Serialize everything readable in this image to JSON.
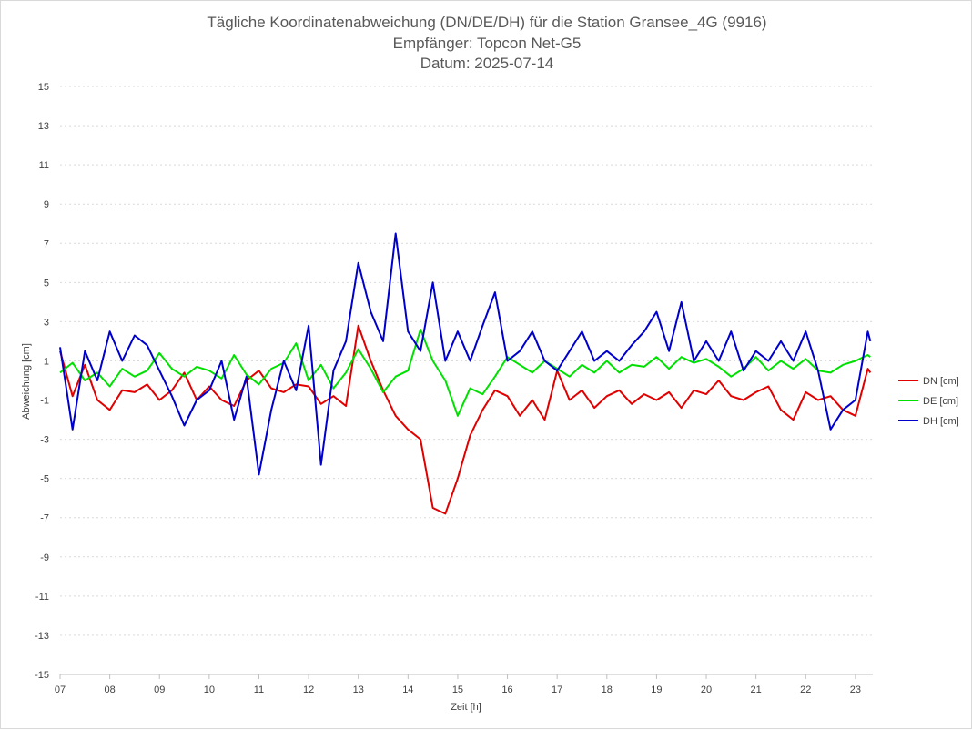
{
  "chart_data": {
    "type": "line",
    "title_lines": [
      "Tägliche Koordinatenabweichung (DN/DE/DH) für die Station Gransee_4G (9916)",
      "Empfänger: Topcon Net-G5",
      "Datum: 2025-07-14"
    ],
    "xlabel": "Zeit [h]",
    "ylabel": "Abweichung [cm]",
    "xlim": [
      7,
      23.35
    ],
    "ylim": [
      -15,
      15
    ],
    "x_ticks": [
      "07",
      "08",
      "09",
      "10",
      "11",
      "12",
      "13",
      "14",
      "15",
      "16",
      "17",
      "18",
      "19",
      "20",
      "21",
      "22",
      "23"
    ],
    "y_ticks": [
      "15",
      "13",
      "11",
      "9",
      "7",
      "5",
      "3",
      "1",
      "-1",
      "-3",
      "-5",
      "-7",
      "-9",
      "-11",
      "-13",
      "-15"
    ],
    "grid": "horizontal dashed",
    "legend_position": "right",
    "x": [
      7.0,
      7.25,
      7.5,
      7.75,
      8.0,
      8.25,
      8.5,
      8.75,
      9.0,
      9.25,
      9.5,
      9.75,
      10.0,
      10.25,
      10.5,
      10.75,
      11.0,
      11.25,
      11.5,
      11.75,
      12.0,
      12.25,
      12.5,
      12.75,
      13.0,
      13.25,
      13.5,
      13.75,
      14.0,
      14.25,
      14.5,
      14.75,
      15.0,
      15.25,
      15.5,
      15.75,
      16.0,
      16.25,
      16.5,
      16.75,
      17.0,
      17.25,
      17.5,
      17.75,
      18.0,
      18.25,
      18.5,
      18.75,
      19.0,
      19.25,
      19.5,
      19.75,
      20.0,
      20.25,
      20.5,
      20.75,
      21.0,
      21.25,
      21.5,
      21.75,
      22.0,
      22.25,
      22.5,
      22.75,
      23.0,
      23.25,
      23.3
    ],
    "series": [
      {
        "name": "DN [cm]",
        "color": "#e00000",
        "values": [
          1.5,
          -0.8,
          0.8,
          -1.0,
          -1.5,
          -0.5,
          -0.6,
          -0.2,
          -1.0,
          -0.5,
          0.4,
          -1.0,
          -0.3,
          -1.0,
          -1.3,
          0.0,
          0.5,
          -0.4,
          -0.6,
          -0.2,
          -0.3,
          -1.2,
          -0.8,
          -1.3,
          2.8,
          1.0,
          -0.5,
          -1.8,
          -2.5,
          -3.0,
          -6.5,
          -6.8,
          -5.0,
          -2.8,
          -1.5,
          -0.5,
          -0.8,
          -1.8,
          -1.0,
          -2.0,
          0.5,
          -1.0,
          -0.5,
          -1.4,
          -0.8,
          -0.5,
          -1.2,
          -0.7,
          -1.0,
          -0.6,
          -1.4,
          -0.5,
          -0.7,
          0.0,
          -0.8,
          -1.0,
          -0.6,
          -0.3,
          -1.5,
          -2.0,
          -0.6,
          -1.0,
          -0.8,
          -1.5,
          -1.8,
          0.6,
          0.4
        ]
      },
      {
        "name": "DE [cm]",
        "color": "#00e000",
        "values": [
          0.4,
          0.9,
          0.0,
          0.4,
          -0.3,
          0.6,
          0.2,
          0.5,
          1.4,
          0.6,
          0.2,
          0.7,
          0.5,
          0.1,
          1.3,
          0.3,
          -0.2,
          0.6,
          0.9,
          1.9,
          0.0,
          0.8,
          -0.4,
          0.4,
          1.6,
          0.6,
          -0.6,
          0.2,
          0.5,
          2.6,
          1.0,
          0.0,
          -1.8,
          -0.4,
          -0.7,
          0.2,
          1.2,
          0.8,
          0.4,
          1.0,
          0.6,
          0.2,
          0.8,
          0.4,
          1.0,
          0.4,
          0.8,
          0.7,
          1.2,
          0.6,
          1.2,
          0.9,
          1.1,
          0.7,
          0.2,
          0.6,
          1.2,
          0.5,
          1.0,
          0.6,
          1.1,
          0.5,
          0.4,
          0.8,
          1.0,
          1.3,
          1.2
        ]
      },
      {
        "name": "DH [cm]",
        "color": "#0000cc",
        "values": [
          1.7,
          -2.5,
          1.5,
          0.0,
          2.5,
          1.0,
          2.3,
          1.8,
          0.5,
          -0.8,
          -2.3,
          -1.0,
          -0.5,
          1.0,
          -2.0,
          0.2,
          -4.8,
          -1.5,
          1.0,
          -0.5,
          2.8,
          -4.3,
          0.5,
          2.0,
          6.0,
          3.5,
          2.0,
          7.5,
          2.5,
          1.5,
          5.0,
          1.0,
          2.5,
          1.0,
          2.8,
          4.5,
          1.0,
          1.5,
          2.5,
          1.0,
          0.5,
          1.5,
          2.5,
          1.0,
          1.5,
          1.0,
          1.8,
          2.5,
          3.5,
          1.5,
          4.0,
          1.0,
          2.0,
          1.0,
          2.5,
          0.5,
          1.5,
          1.0,
          2.0,
          1.0,
          2.5,
          0.5,
          -2.5,
          -1.5,
          -1.0,
          2.5,
          2.0
        ]
      }
    ]
  }
}
